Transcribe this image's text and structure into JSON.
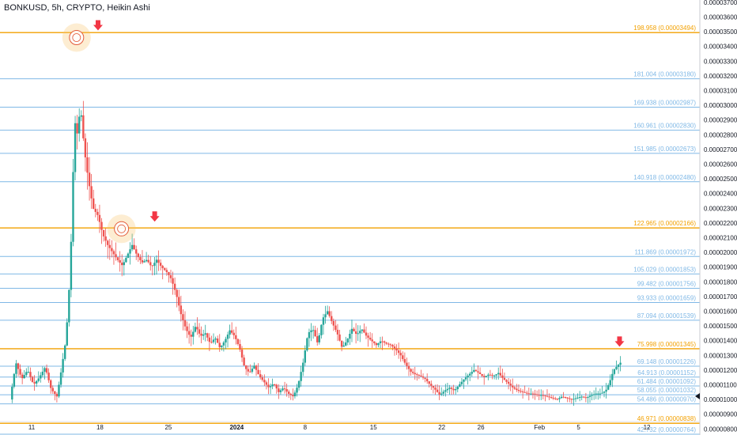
{
  "chart_data": {
    "type": "candlestick",
    "title": "BONKUSD, 5h, CRYPTO, Heikin Ashi",
    "ylim": [
      7.8e-06,
      3.71e-05
    ],
    "y_ticks": [
      "0.00003700",
      "0.00003600",
      "0.00003500",
      "0.00003400",
      "0.00003300",
      "0.00003200",
      "0.00003100",
      "0.00003000",
      "0.00002900",
      "0.00002800",
      "0.00002700",
      "0.00002600",
      "0.00002500",
      "0.00002400",
      "0.00002300",
      "0.00002200",
      "0.00002100",
      "0.00002000",
      "0.00001900",
      "0.00001800",
      "0.00001700",
      "0.00001600",
      "0.00001500",
      "0.00001400",
      "0.00001300",
      "0.00001200",
      "0.00001100",
      "0.00001000",
      "0.00000900",
      "0.00000800"
    ],
    "x_ticks": [
      {
        "label": "11",
        "day": 11
      },
      {
        "label": "18",
        "day": 18
      },
      {
        "label": "25",
        "day": 25
      },
      {
        "label": "2024",
        "day": 32
      },
      {
        "label": "8",
        "day": 39
      },
      {
        "label": "15",
        "day": 46
      },
      {
        "label": "22",
        "day": 53
      },
      {
        "label": "26",
        "day": 57
      },
      {
        "label": "Feb",
        "day": 63
      },
      {
        "label": "5",
        "day": 67
      },
      {
        "label": "12",
        "day": 74
      }
    ],
    "x_note": "day = days since 1 Dec 2023",
    "levels": [
      {
        "label": "198.958 (0.00003494)",
        "value": 3.494e-05,
        "color": "#f2a000"
      },
      {
        "label": "181.004 (0.00003180)",
        "value": 3.18e-05,
        "color": "#7fb8e6"
      },
      {
        "label": "169.938 (0.00002987)",
        "value": 2.987e-05,
        "color": "#7fb8e6"
      },
      {
        "label": "160.961 (0.00002830)",
        "value": 2.83e-05,
        "color": "#7fb8e6"
      },
      {
        "label": "151.985 (0.00002673)",
        "value": 2.673e-05,
        "color": "#7fb8e6"
      },
      {
        "label": "140.918 (0.00002480)",
        "value": 2.48e-05,
        "color": "#7fb8e6"
      },
      {
        "label": "122.965 (0.00002166)",
        "value": 2.166e-05,
        "color": "#f2a000"
      },
      {
        "label": "111.869 (0.00001972)",
        "value": 1.972e-05,
        "color": "#7fb8e6"
      },
      {
        "label": "105.029 (0.00001853)",
        "value": 1.853e-05,
        "color": "#7fb8e6"
      },
      {
        "label": "99.482 (0.00001756)",
        "value": 1.756e-05,
        "color": "#7fb8e6"
      },
      {
        "label": "93.933 (0.00001659)",
        "value": 1.659e-05,
        "color": "#7fb8e6"
      },
      {
        "label": "87.094 (0.00001539)",
        "value": 1.539e-05,
        "color": "#7fb8e6"
      },
      {
        "label": "75.998 (0.00001345)",
        "value": 1.345e-05,
        "color": "#f2a000"
      },
      {
        "label": "69.148 (0.00001226)",
        "value": 1.226e-05,
        "color": "#7fb8e6"
      },
      {
        "label": "64.913 (0.00001152)",
        "value": 1.152e-05,
        "color": "#7fb8e6"
      },
      {
        "label": "61.484 (0.00001092)",
        "value": 1.092e-05,
        "color": "#7fb8e6"
      },
      {
        "label": "58.055 (0.00001032)",
        "value": 1.032e-05,
        "color": "#7fb8e6"
      },
      {
        "label": "54.486 (0.00000970)",
        "value": 9.7e-06,
        "color": "#7fb8e6"
      },
      {
        "label": "46.971 (0.00000838)",
        "value": 8.38e-06,
        "color": "#f2a000"
      },
      {
        "label": "42.732 (0.00000764)",
        "value": 7.64e-06,
        "color": "#7fb8e6"
      }
    ],
    "price_path": [
      [
        9.0,
        1e-05
      ],
      [
        9.6,
        1.25e-05
      ],
      [
        10.2,
        1.14e-05
      ],
      [
        10.8,
        1.2e-05
      ],
      [
        11.4,
        1.1e-05
      ],
      [
        12.0,
        1.15e-05
      ],
      [
        12.6,
        1.22e-05
      ],
      [
        13.2,
        1.07e-05
      ],
      [
        13.8,
        1.02e-05
      ],
      [
        14.2,
        1.18e-05
      ],
      [
        14.7,
        1.4e-05
      ],
      [
        15.0,
        1.68e-05
      ],
      [
        15.3,
        2.15e-05
      ],
      [
        15.6,
        2.9e-05
      ],
      [
        15.9,
        2.8e-05
      ],
      [
        16.2,
        3e-05
      ],
      [
        16.6,
        2.7e-05
      ],
      [
        17.0,
        2.5e-05
      ],
      [
        17.5,
        2.3e-05
      ],
      [
        18.0,
        2.25e-05
      ],
      [
        18.5,
        2.12e-05
      ],
      [
        19.0,
        2.05e-05
      ],
      [
        19.5,
        2e-05
      ],
      [
        20.0,
        1.95e-05
      ],
      [
        20.5,
        1.91e-05
      ],
      [
        21.0,
        1.98e-05
      ],
      [
        21.5,
        2.05e-05
      ],
      [
        22.0,
        1.98e-05
      ],
      [
        22.5,
        1.93e-05
      ],
      [
        23.0,
        1.95e-05
      ],
      [
        23.5,
        1.9e-05
      ],
      [
        24.0,
        1.95e-05
      ],
      [
        24.5,
        1.9e-05
      ],
      [
        25.0,
        1.87e-05
      ],
      [
        25.5,
        1.82e-05
      ],
      [
        26.0,
        1.72e-05
      ],
      [
        26.5,
        1.58e-05
      ],
      [
        27.0,
        1.48e-05
      ],
      [
        27.5,
        1.42e-05
      ],
      [
        28.0,
        1.5e-05
      ],
      [
        28.5,
        1.43e-05
      ],
      [
        29.0,
        1.45e-05
      ],
      [
        29.5,
        1.38e-05
      ],
      [
        30.0,
        1.42e-05
      ],
      [
        30.5,
        1.35e-05
      ],
      [
        31.0,
        1.4e-05
      ],
      [
        31.5,
        1.47e-05
      ],
      [
        32.0,
        1.43e-05
      ],
      [
        32.5,
        1.35e-05
      ],
      [
        33.0,
        1.22e-05
      ],
      [
        33.5,
        1.18e-05
      ],
      [
        34.0,
        1.23e-05
      ],
      [
        34.5,
        1.16e-05
      ],
      [
        35.0,
        1.12e-05
      ],
      [
        35.5,
        1.08e-05
      ],
      [
        36.0,
        1.11e-05
      ],
      [
        36.5,
        1.05e-05
      ],
      [
        37.0,
        1.08e-05
      ],
      [
        37.5,
        1.04e-05
      ],
      [
        38.0,
        1.02e-05
      ],
      [
        38.5,
        1.1e-05
      ],
      [
        39.0,
        1.25e-05
      ],
      [
        39.5,
        1.45e-05
      ],
      [
        40.0,
        1.48e-05
      ],
      [
        40.5,
        1.38e-05
      ],
      [
        41.0,
        1.55e-05
      ],
      [
        41.5,
        1.6e-05
      ],
      [
        42.0,
        1.52e-05
      ],
      [
        42.5,
        1.45e-05
      ],
      [
        43.0,
        1.35e-05
      ],
      [
        43.5,
        1.4e-05
      ],
      [
        44.0,
        1.48e-05
      ],
      [
        44.5,
        1.44e-05
      ],
      [
        45.0,
        1.48e-05
      ],
      [
        45.5,
        1.43e-05
      ],
      [
        46.0,
        1.4e-05
      ],
      [
        46.5,
        1.37e-05
      ],
      [
        47.0,
        1.4e-05
      ],
      [
        47.5,
        1.38e-05
      ],
      [
        48.0,
        1.37e-05
      ],
      [
        48.5,
        1.34e-05
      ],
      [
        49.0,
        1.3e-05
      ],
      [
        49.5,
        1.24e-05
      ],
      [
        50.0,
        1.19e-05
      ],
      [
        50.5,
        1.17e-05
      ],
      [
        51.0,
        1.16e-05
      ],
      [
        51.5,
        1.14e-05
      ],
      [
        52.0,
        1.1e-05
      ],
      [
        52.5,
        1.07e-05
      ],
      [
        53.0,
        1.03e-05
      ],
      [
        53.5,
        1.06e-05
      ],
      [
        54.0,
        1.08e-05
      ],
      [
        54.5,
        1.06e-05
      ],
      [
        55.0,
        1.1e-05
      ],
      [
        55.5,
        1.14e-05
      ],
      [
        56.0,
        1.17e-05
      ],
      [
        56.5,
        1.2e-05
      ],
      [
        57.0,
        1.18e-05
      ],
      [
        57.5,
        1.15e-05
      ],
      [
        58.0,
        1.17e-05
      ],
      [
        58.5,
        1.16e-05
      ],
      [
        59.0,
        1.18e-05
      ],
      [
        59.5,
        1.14e-05
      ],
      [
        60.0,
        1.11e-05
      ],
      [
        60.5,
        1.08e-05
      ],
      [
        61.0,
        1.06e-05
      ],
      [
        61.5,
        1.05e-05
      ],
      [
        62.0,
        1.04e-05
      ],
      [
        62.5,
        1.04e-05
      ],
      [
        63.0,
        1.03e-05
      ],
      [
        63.5,
        1.03e-05
      ],
      [
        64.0,
        1.02e-05
      ],
      [
        64.5,
        1.01e-05
      ],
      [
        65.0,
        1e-05
      ],
      [
        65.5,
        1.02e-05
      ],
      [
        66.0,
        1.01e-05
      ],
      [
        66.5,
        1e-05
      ],
      [
        67.0,
        1.01e-05
      ],
      [
        67.5,
        1.02e-05
      ],
      [
        68.0,
        1.01e-05
      ],
      [
        68.5,
        1.03e-05
      ],
      [
        69.0,
        1.04e-05
      ],
      [
        69.5,
        1.04e-05
      ],
      [
        70.0,
        1.06e-05
      ],
      [
        70.4,
        1.12e-05
      ],
      [
        70.8,
        1.2e-05
      ],
      [
        71.2,
        1.23e-05
      ],
      [
        71.5,
        1.25e-05
      ]
    ],
    "highlights": [
      {
        "day": 15.6,
        "value": 3.46e-05
      },
      {
        "day": 20.2,
        "value": 2.16e-05
      }
    ],
    "arrows": [
      {
        "day": 17.8,
        "value": 3.53e-05
      },
      {
        "day": 23.6,
        "value": 2.23e-05
      },
      {
        "day": 71.2,
        "value": 1.38e-05
      }
    ]
  }
}
